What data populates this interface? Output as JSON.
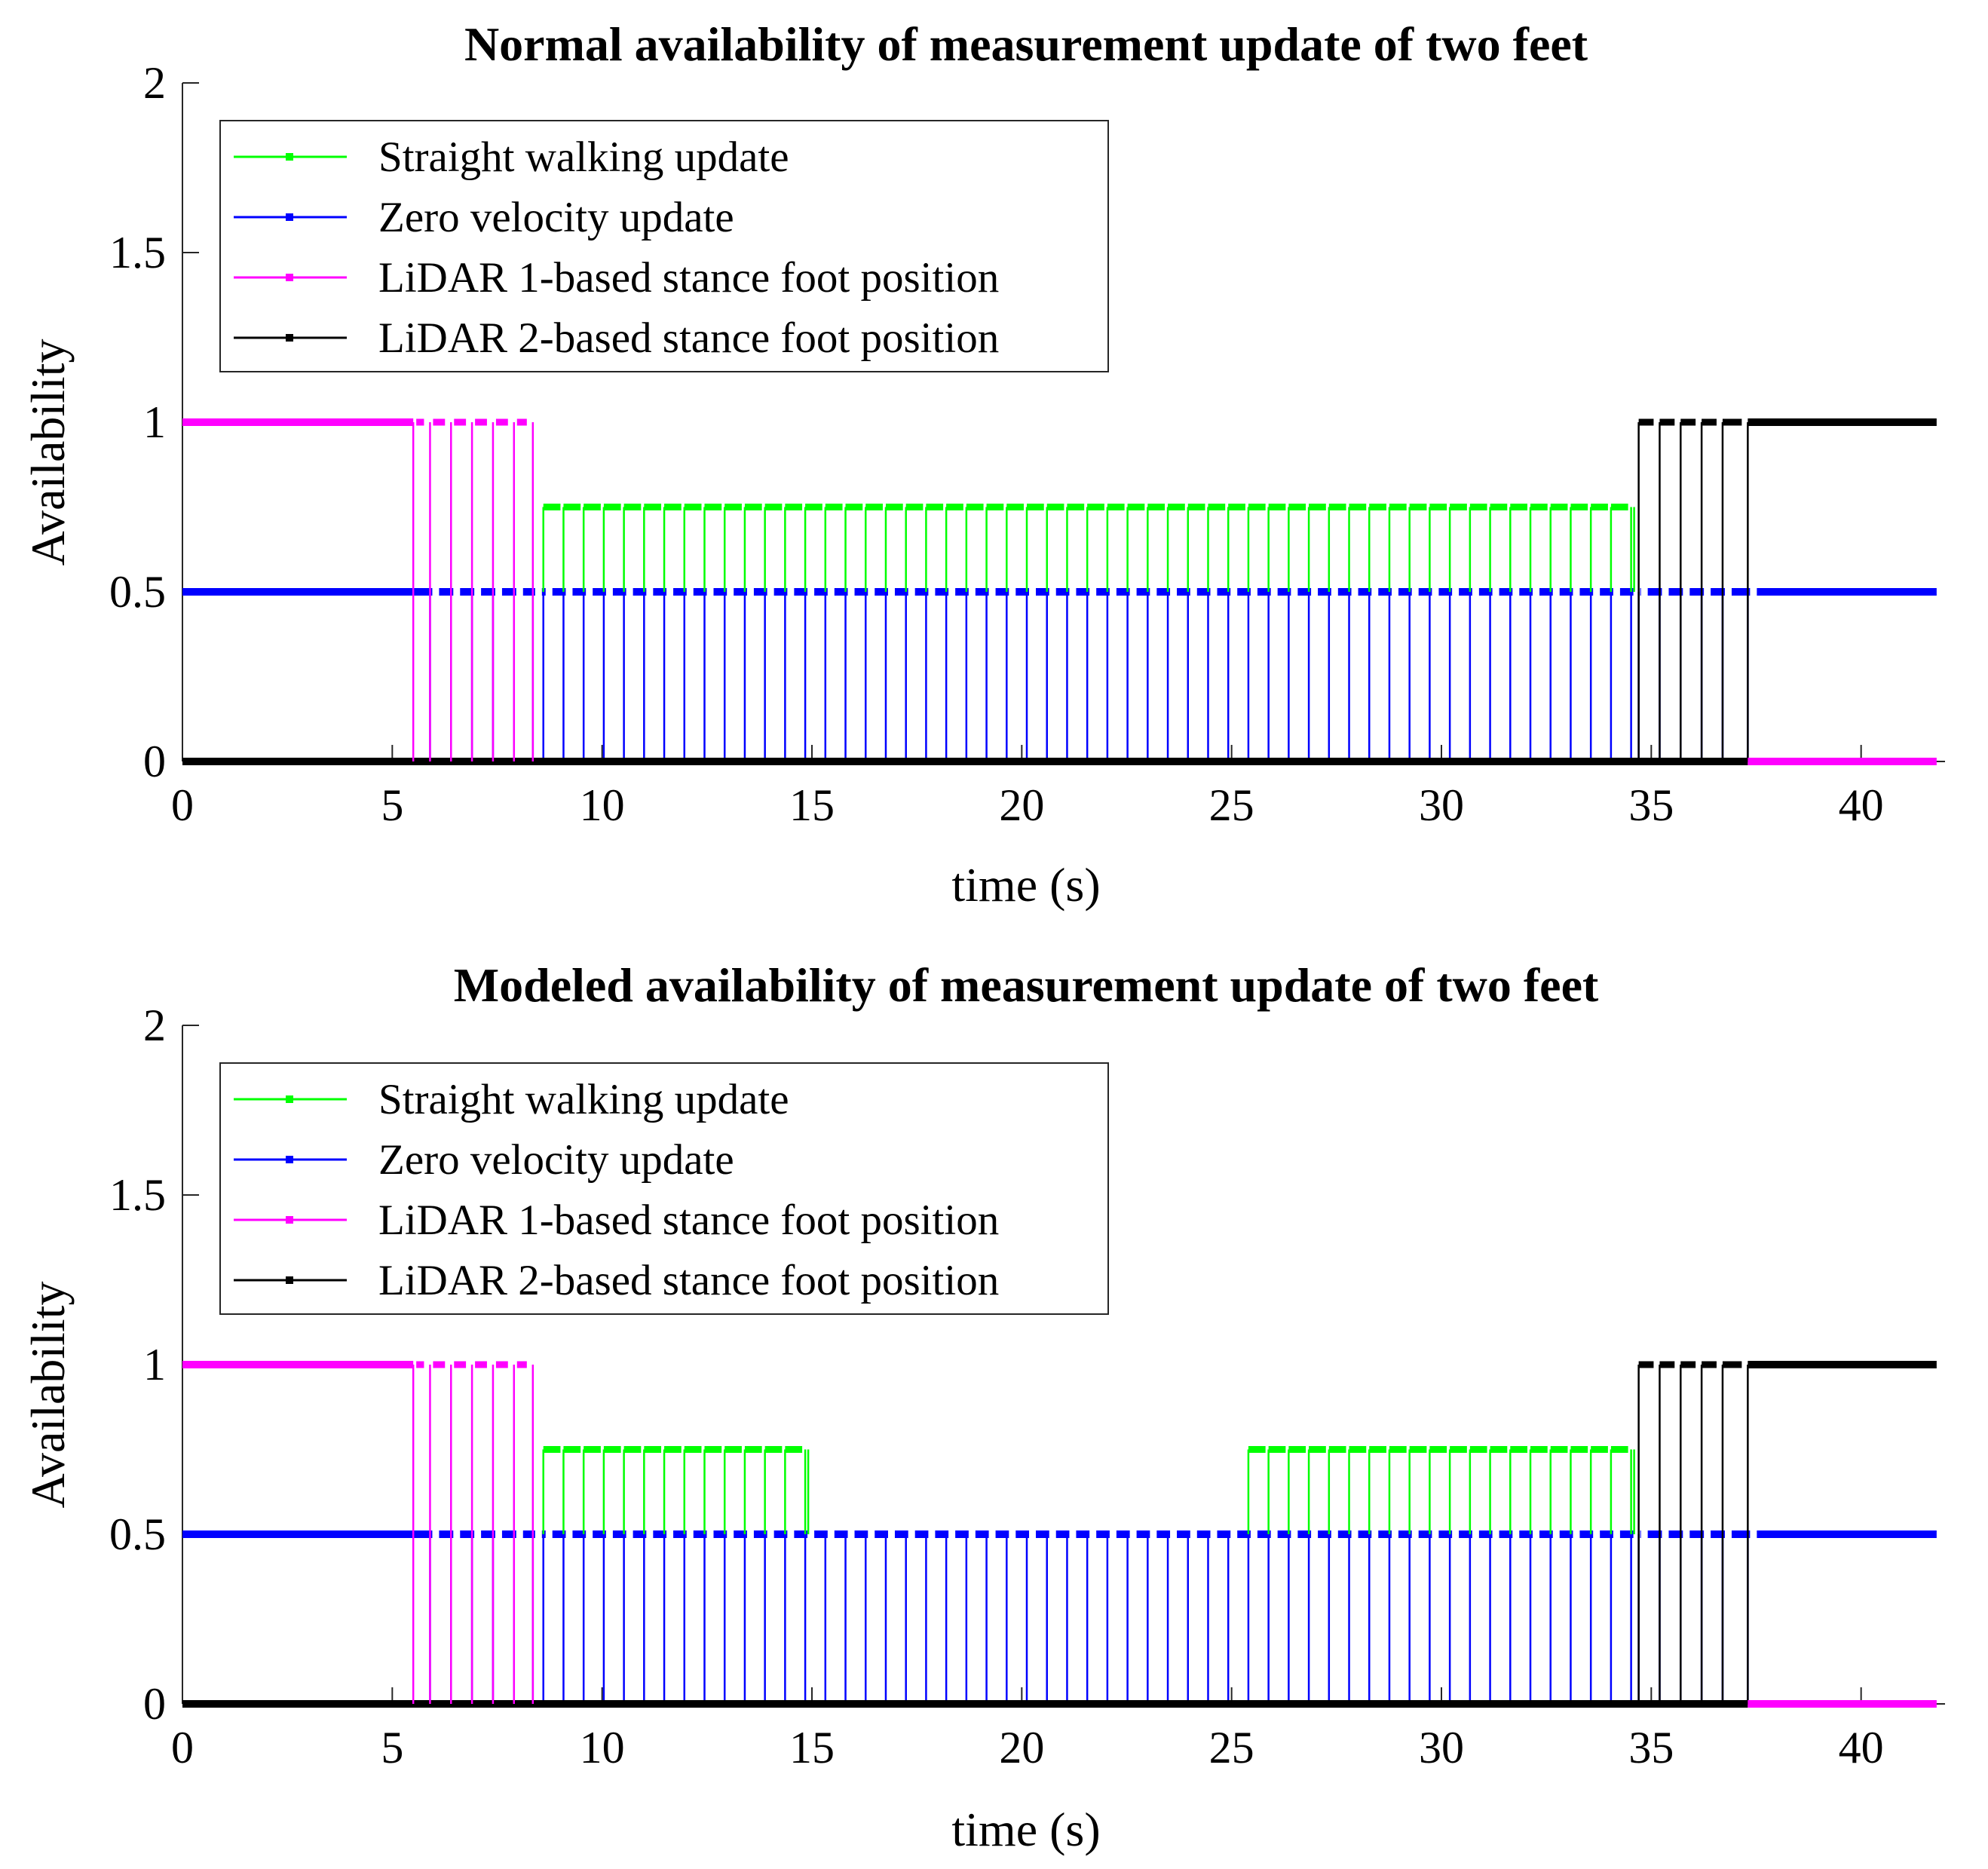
{
  "chart_data": [
    {
      "type": "line",
      "title": "Normal availability of measurement update of two feet",
      "xlabel": "time (s)",
      "ylabel": "Availability",
      "xlim": [
        0,
        42
      ],
      "ylim": [
        0,
        2
      ],
      "xticks": [
        0,
        5,
        10,
        15,
        20,
        25,
        30,
        35,
        40
      ],
      "xtick_labels": [
        "0",
        "5",
        "10",
        "15",
        "20",
        "25",
        "30",
        "35",
        "40"
      ],
      "yticks": [
        0,
        0.5,
        1,
        1.5,
        2
      ],
      "ytick_labels": [
        "0",
        "0.5",
        "1",
        "1.5",
        "2"
      ],
      "legend_position": "top-left",
      "step_start": 8.6,
      "step_end": 34.6,
      "step_period": 0.48,
      "series": [
        {
          "name": "Straight walking update",
          "color": "#00ff00",
          "level": 0.75,
          "intervals": [
            [
              8.6,
              34.6
            ]
          ]
        },
        {
          "name": "Zero velocity update",
          "color": "#0000ff",
          "level": 0.5,
          "intervals": [
            [
              0,
              41.8
            ]
          ]
        },
        {
          "name": "LiDAR 1-based stance foot position",
          "color": "#ff00ff",
          "level": 1,
          "pulses": [
            5.5,
            5.9,
            6.4,
            6.9,
            7.4,
            7.9,
            8.35
          ],
          "pre_level_end": 5.5,
          "post_zero_start": 37.3,
          "x_end": 41.8
        },
        {
          "name": "LiDAR 2-based stance foot position",
          "color": "#000000",
          "level": 1,
          "pulses": [
            34.7,
            35.2,
            35.7,
            36.2,
            36.7,
            37.3
          ],
          "pre_zero_end": 37.3,
          "post_level_start": 37.3,
          "x_end": 41.8
        }
      ]
    },
    {
      "type": "line",
      "title": "Modeled availability of measurement update of two feet",
      "xlabel": "time (s)",
      "ylabel": "Availability",
      "xlim": [
        0,
        42
      ],
      "ylim": [
        0,
        2
      ],
      "xticks": [
        0,
        5,
        10,
        15,
        20,
        25,
        30,
        35,
        40
      ],
      "xtick_labels": [
        "0",
        "5",
        "10",
        "15",
        "20",
        "25",
        "30",
        "35",
        "40"
      ],
      "yticks": [
        0,
        0.5,
        1,
        1.5,
        2
      ],
      "ytick_labels": [
        "0",
        "0.5",
        "1",
        "1.5",
        "2"
      ],
      "legend_position": "top-left",
      "step_start": 8.6,
      "step_end": 34.6,
      "step_period": 0.48,
      "series": [
        {
          "name": "Straight walking update",
          "color": "#00ff00",
          "level": 0.75,
          "intervals": [
            [
              8.6,
              15.0
            ],
            [
              25.0,
              34.6
            ]
          ]
        },
        {
          "name": "Zero velocity update",
          "color": "#0000ff",
          "level": 0.5,
          "intervals": [
            [
              0,
              41.8
            ]
          ]
        },
        {
          "name": "LiDAR 1-based stance foot position",
          "color": "#ff00ff",
          "level": 1,
          "pulses": [
            5.5,
            5.9,
            6.4,
            6.9,
            7.4,
            7.9,
            8.35
          ],
          "pre_level_end": 5.5,
          "post_zero_start": 37.3,
          "x_end": 41.8
        },
        {
          "name": "LiDAR 2-based stance foot position",
          "color": "#000000",
          "level": 1,
          "pulses": [
            34.7,
            35.2,
            35.7,
            36.2,
            36.7,
            37.3
          ],
          "pre_zero_end": 37.3,
          "post_level_start": 37.3,
          "x_end": 41.8
        }
      ]
    }
  ]
}
